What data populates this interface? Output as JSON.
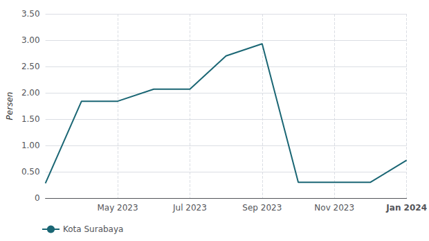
{
  "chart_data": {
    "type": "line",
    "ylabel": "Persen",
    "categories": [
      null,
      null,
      "May 2023",
      null,
      "Jul 2023",
      null,
      "Sep 2023",
      null,
      "Nov 2023",
      null,
      "Jan 2024"
    ],
    "series": [
      {
        "name": "Kota Surabaya",
        "color": "#1a6674",
        "values": [
          0.28,
          1.84,
          1.84,
          2.07,
          2.07,
          2.7,
          2.93,
          0.3,
          0.3,
          0.3,
          0.72
        ]
      }
    ],
    "ylim": [
      0,
      3.5
    ],
    "yticks": [
      0,
      {
        "value": 0.5,
        "label": "0.50"
      },
      {
        "value": 1.0,
        "label": "1.00"
      },
      {
        "value": 1.5,
        "label": "1.50"
      },
      {
        "value": 2.0,
        "label": "2.00"
      },
      {
        "value": 2.5,
        "label": "2.50"
      },
      {
        "value": 3.0,
        "label": "3.00"
      },
      {
        "value": 3.5,
        "label": "3.50"
      }
    ],
    "grid": true,
    "legend": "lower left"
  }
}
